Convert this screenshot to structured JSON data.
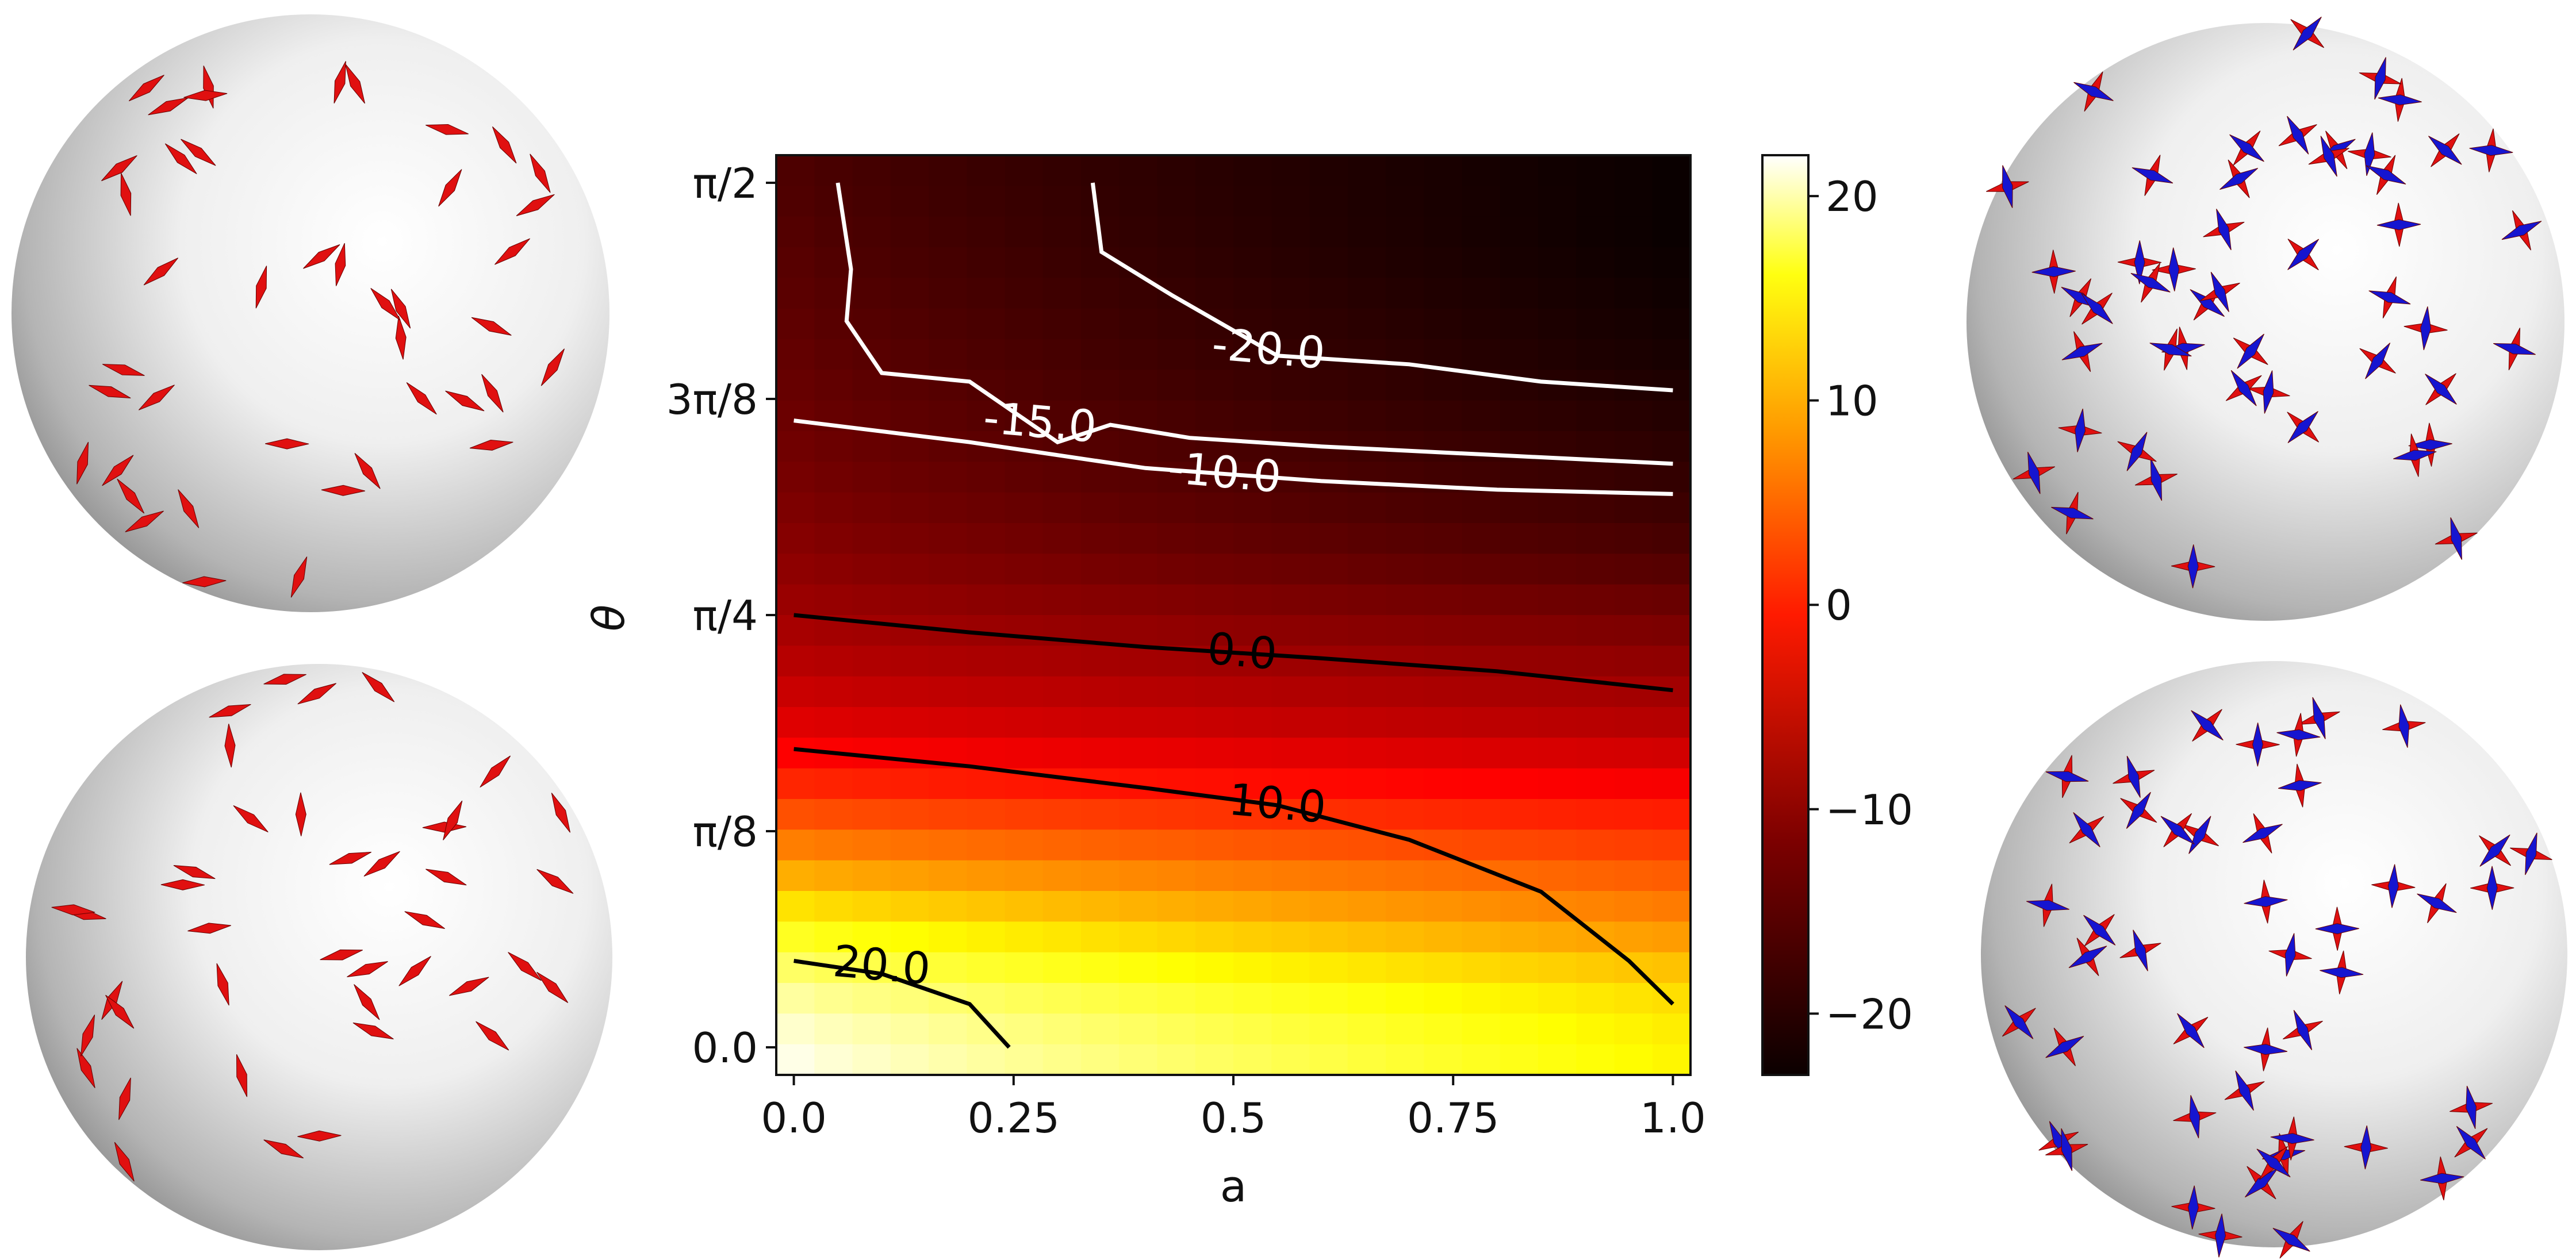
{
  "chart_data": {
    "type": "heatmap",
    "title": "",
    "xlabel": "a",
    "ylabel": "θ",
    "xlim": [
      0.0,
      1.0
    ],
    "ylim_rad": [
      0.0,
      1.5708
    ],
    "x_ticks": [
      {
        "value": 0.0,
        "label": "0.0"
      },
      {
        "value": 0.25,
        "label": "0.25"
      },
      {
        "value": 0.5,
        "label": "0.5"
      },
      {
        "value": 0.75,
        "label": "0.75"
      },
      {
        "value": 1.0,
        "label": "1.0"
      }
    ],
    "y_ticks": [
      {
        "value": 0.0,
        "label": "0.0"
      },
      {
        "value": 0.3927,
        "label": "π/8"
      },
      {
        "value": 0.7854,
        "label": "π/4"
      },
      {
        "value": 1.1781,
        "label": "3π/8"
      },
      {
        "value": 1.5708,
        "label": "π/2"
      }
    ],
    "colormap": "hot",
    "colorbar": {
      "range": [
        -23,
        22
      ],
      "ticks": [
        {
          "value": 20,
          "label": "20"
        },
        {
          "value": 10,
          "label": "10"
        },
        {
          "value": 0,
          "label": "0"
        },
        {
          "value": -10,
          "label": "−10"
        },
        {
          "value": -20,
          "label": "−20"
        }
      ]
    },
    "field_model": {
      "rows_theta_over_pi2": [
        0,
        0.07,
        0.14,
        0.21,
        0.29,
        0.36,
        0.43,
        0.5,
        0.57,
        0.64,
        0.71,
        0.79,
        0.86,
        0.93,
        1.0
      ],
      "values_at_a0": [
        21,
        17,
        11,
        4,
        -3,
        -8,
        -11,
        -13,
        -14.5,
        -15.5,
        -16.3,
        -17,
        -17.5,
        -18,
        -18.5
      ],
      "values_at_a1": [
        10,
        8,
        3,
        -1,
        -6,
        -11,
        -13.5,
        -16,
        -18.5,
        -20,
        -21,
        -22,
        -22.5,
        -23,
        -23
      ]
    },
    "contours": [
      {
        "level": 20.0,
        "label": "20.0",
        "color": "#000000",
        "points": [
          [
            0.0,
            0.1
          ],
          [
            0.1,
            0.085
          ],
          [
            0.2,
            0.05
          ],
          [
            0.245,
            0.0
          ]
        ],
        "label_at": [
          0.1,
          0.095
        ]
      },
      {
        "level": 10.0,
        "label": "10.0",
        "color": "#000000",
        "points": [
          [
            0.0,
            0.345
          ],
          [
            0.2,
            0.325
          ],
          [
            0.4,
            0.3
          ],
          [
            0.55,
            0.28
          ],
          [
            0.7,
            0.24
          ],
          [
            0.85,
            0.18
          ],
          [
            0.95,
            0.1
          ],
          [
            1.0,
            0.05
          ]
        ],
        "label_at": [
          0.55,
          0.282
        ]
      },
      {
        "level": 0.0,
        "label": "0.0",
        "color": "#000000",
        "points": [
          [
            0.0,
            0.5
          ],
          [
            0.2,
            0.48
          ],
          [
            0.4,
            0.463
          ],
          [
            0.6,
            0.45
          ],
          [
            0.8,
            0.435
          ],
          [
            1.0,
            0.413
          ]
        ],
        "label_at": [
          0.51,
          0.458
        ]
      },
      {
        "level": -10.0,
        "label": "-10.0",
        "color": "#ffffff",
        "points": [
          [
            0.0,
            0.725
          ],
          [
            0.2,
            0.7
          ],
          [
            0.4,
            0.67
          ],
          [
            0.6,
            0.655
          ],
          [
            0.8,
            0.645
          ],
          [
            1.0,
            0.64
          ]
        ],
        "label_at": [
          0.49,
          0.665
        ]
      },
      {
        "level": -15.0,
        "label": "-15.0",
        "color": "#ffffff",
        "points": [
          [
            0.05,
            1.0
          ],
          [
            0.065,
            0.9
          ],
          [
            0.06,
            0.84
          ],
          [
            0.1,
            0.78
          ],
          [
            0.2,
            0.77
          ],
          [
            0.3,
            0.7
          ],
          [
            0.36,
            0.72
          ],
          [
            0.45,
            0.705
          ],
          [
            0.6,
            0.695
          ],
          [
            0.8,
            0.685
          ],
          [
            1.0,
            0.675
          ]
        ],
        "label_at": [
          0.28,
          0.723
        ]
      },
      {
        "level": -20.0,
        "label": "-20.0",
        "color": "#ffffff",
        "points": [
          [
            0.34,
            1.0
          ],
          [
            0.35,
            0.92
          ],
          [
            0.43,
            0.87
          ],
          [
            0.55,
            0.8
          ],
          [
            0.7,
            0.79
          ],
          [
            0.85,
            0.77
          ],
          [
            1.0,
            0.76
          ]
        ],
        "label_at": [
          0.54,
          0.808
        ]
      }
    ]
  },
  "spheres": {
    "top_left": {
      "arrow_colors": [
        "#e01010"
      ]
    },
    "bottom_left": {
      "arrow_colors": [
        "#e01010"
      ]
    },
    "top_right": {
      "arrow_colors": [
        "#e01010",
        "#1515d0"
      ]
    },
    "bottom_right": {
      "arrow_colors": [
        "#e01010",
        "#1515d0"
      ]
    }
  }
}
